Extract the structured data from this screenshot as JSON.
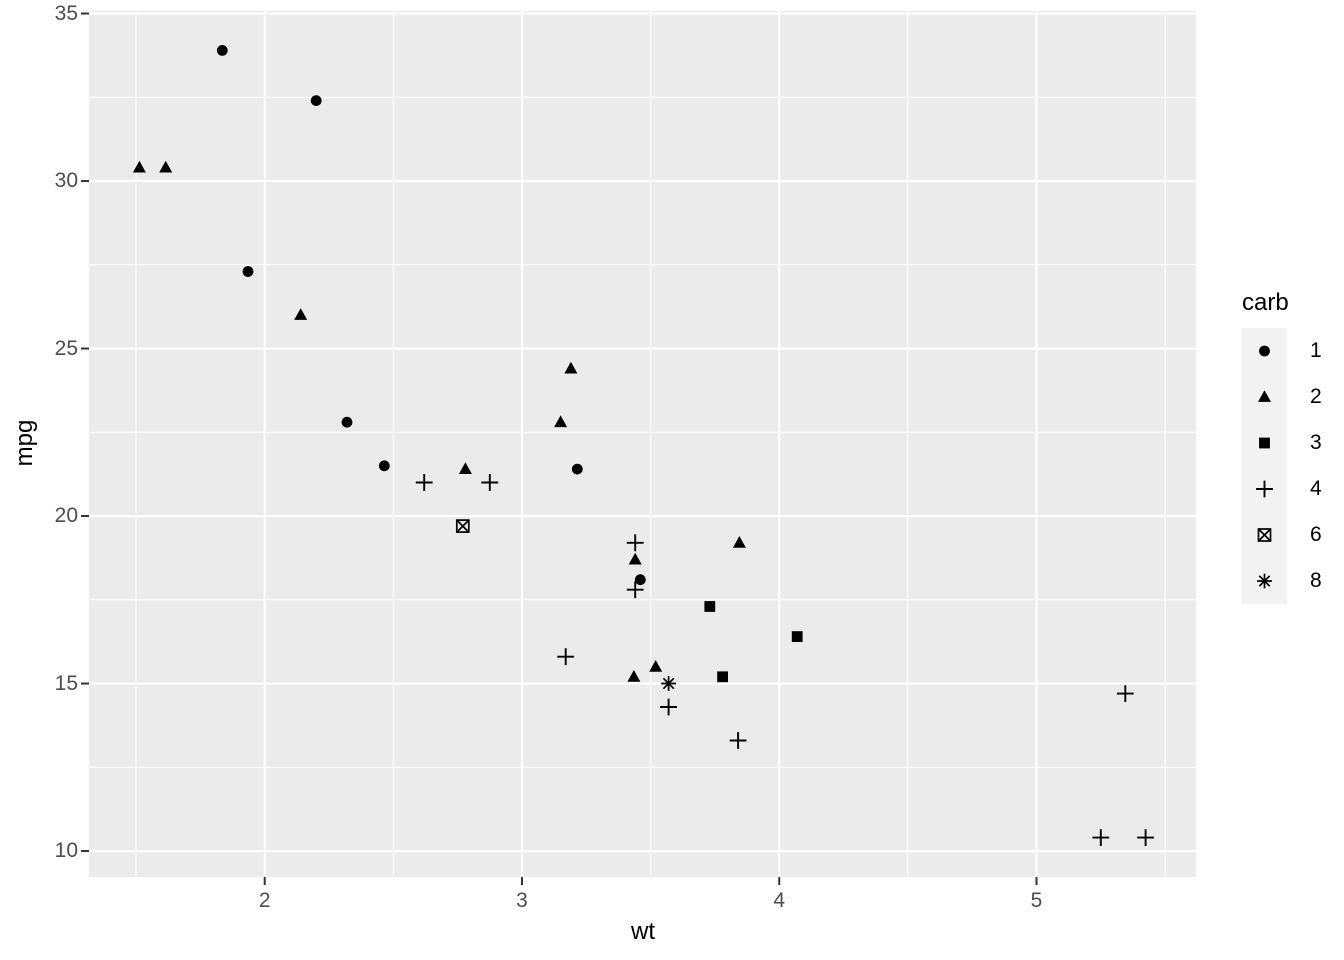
{
  "figure": {
    "page_bg": "#FFFFFF",
    "panel_bg": "#EBEBEB",
    "grid_color": "#FFFFFF",
    "tick_mark_color": "#333333",
    "tick_label_color": "#4D4D4D",
    "axis_title_color": "#000000",
    "marker_color": "#000000",
    "legend_key_bg": "#F2F2F2"
  },
  "chart_data": {
    "type": "scatter",
    "title": "",
    "xlabel": "wt",
    "ylabel": "mpg",
    "xlim": [
      1.317,
      5.62
    ],
    "ylim": [
      9.225,
      35.075
    ],
    "x_ticks": [
      "2",
      "3",
      "4",
      "5"
    ],
    "x_tick_values": [
      2,
      3,
      4,
      5
    ],
    "y_ticks": [
      "10",
      "15",
      "20",
      "25",
      "30",
      "35"
    ],
    "y_tick_values": [
      10,
      15,
      20,
      25,
      30,
      35
    ],
    "x_minor_values": [
      1.5,
      2.5,
      3.5,
      4.5,
      5.5
    ],
    "y_minor_values": [
      12.5,
      17.5,
      22.5,
      27.5,
      32.5
    ],
    "grid": "major-and-minor",
    "legend": {
      "title": "carb",
      "position": "right",
      "entries": [
        {
          "label": "1",
          "shape": "circle"
        },
        {
          "label": "2",
          "shape": "triangle"
        },
        {
          "label": "3",
          "shape": "square"
        },
        {
          "label": "4",
          "shape": "plus"
        },
        {
          "label": "6",
          "shape": "square-cross"
        },
        {
          "label": "8",
          "shape": "asterisk"
        }
      ]
    },
    "series": [
      {
        "name": "1",
        "shape": "circle",
        "points": [
          [
            2.32,
            22.8
          ],
          [
            3.215,
            21.4
          ],
          [
            3.46,
            18.1
          ],
          [
            2.2,
            32.4
          ],
          [
            1.835,
            33.9
          ],
          [
            2.465,
            21.5
          ],
          [
            1.935,
            27.3
          ]
        ]
      },
      {
        "name": "2",
        "shape": "triangle",
        "points": [
          [
            3.44,
            18.7
          ],
          [
            3.19,
            24.4
          ],
          [
            3.15,
            22.8
          ],
          [
            1.615,
            30.4
          ],
          [
            3.52,
            15.5
          ],
          [
            3.435,
            15.2
          ],
          [
            3.845,
            19.2
          ],
          [
            2.14,
            26.0
          ],
          [
            1.513,
            30.4
          ],
          [
            2.78,
            21.4
          ]
        ]
      },
      {
        "name": "3",
        "shape": "square",
        "points": [
          [
            4.07,
            16.4
          ],
          [
            3.73,
            17.3
          ],
          [
            3.78,
            15.2
          ]
        ]
      },
      {
        "name": "4",
        "shape": "plus",
        "points": [
          [
            2.62,
            21.0
          ],
          [
            2.875,
            21.0
          ],
          [
            3.57,
            14.3
          ],
          [
            3.44,
            19.2
          ],
          [
            3.44,
            17.8
          ],
          [
            5.25,
            10.4
          ],
          [
            5.424,
            10.4
          ],
          [
            5.345,
            14.7
          ],
          [
            3.84,
            13.3
          ],
          [
            3.17,
            15.8
          ]
        ]
      },
      {
        "name": "6",
        "shape": "square-cross",
        "points": [
          [
            2.77,
            19.7
          ]
        ]
      },
      {
        "name": "8",
        "shape": "asterisk",
        "points": [
          [
            3.57,
            15.0
          ]
        ]
      }
    ]
  }
}
